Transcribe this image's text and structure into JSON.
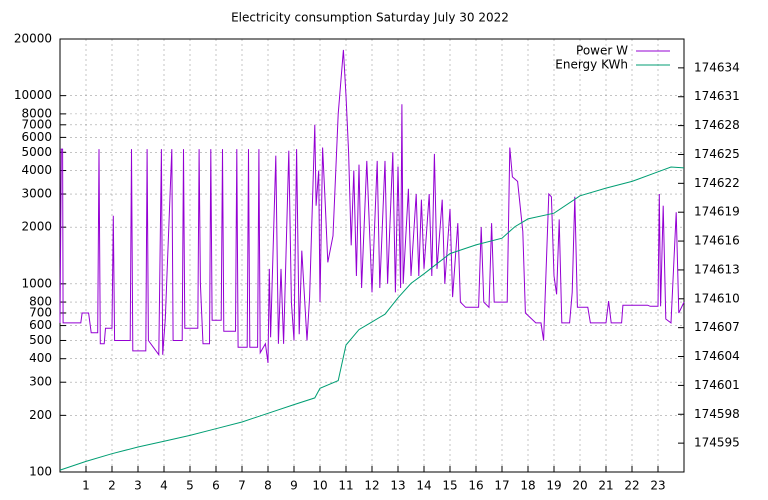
{
  "chart_data": {
    "type": "line",
    "title": "Electricity consumption Saturday July 30 2022",
    "xlim": [
      0,
      24
    ],
    "xticks": [
      1,
      2,
      3,
      4,
      5,
      6,
      7,
      8,
      9,
      10,
      11,
      12,
      13,
      14,
      15,
      16,
      17,
      18,
      19,
      20,
      21,
      22,
      23
    ],
    "ylim": [
      100,
      20000
    ],
    "log_y": true,
    "yticks": [
      100,
      200,
      300,
      400,
      500,
      600,
      700,
      800,
      1000,
      2000,
      3000,
      4000,
      5000,
      6000,
      7000,
      8000,
      10000,
      20000
    ],
    "y2lim": [
      174592,
      174637
    ],
    "y2ticks": [
      174595,
      174598,
      174601,
      174604,
      174607,
      174610,
      174613,
      174616,
      174619,
      174622,
      174625,
      174628,
      174631,
      174634
    ],
    "grid": true,
    "legend": "top-right",
    "series": [
      {
        "name": "Power W",
        "color": "#9400d3",
        "x": [
          0,
          0.05,
          0.1,
          0.12,
          0.8,
          0.85,
          1.1,
          1.2,
          1.45,
          1.5,
          1.55,
          1.7,
          1.75,
          2.0,
          2.05,
          2.1,
          2.7,
          2.75,
          2.8,
          3.3,
          3.35,
          3.4,
          3.8,
          3.9,
          3.95,
          4.05,
          4.3,
          4.35,
          4.7,
          4.75,
          4.8,
          5.3,
          5.35,
          5.4,
          5.5,
          5.75,
          5.8,
          5.85,
          6.2,
          6.25,
          6.3,
          6.75,
          6.8,
          6.85,
          7.2,
          7.25,
          7.3,
          7.6,
          7.65,
          7.7,
          7.9,
          8.0,
          8.05,
          8.1,
          8.3,
          8.4,
          8.5,
          8.6,
          8.8,
          8.9,
          9.0,
          9.1,
          9.2,
          9.3,
          9.5,
          9.6,
          9.8,
          9.85,
          9.95,
          10.0,
          10.1,
          10.2,
          10.3,
          10.5,
          10.7,
          10.9,
          11.0,
          11.1,
          11.2,
          11.3,
          11.4,
          11.5,
          11.6,
          11.8,
          12.0,
          12.2,
          12.3,
          12.5,
          12.6,
          12.8,
          12.9,
          13.0,
          13.1,
          13.15,
          13.2,
          13.4,
          13.5,
          13.7,
          13.8,
          13.9,
          14.0,
          14.2,
          14.3,
          14.4,
          14.5,
          14.7,
          14.8,
          15.0,
          15.1,
          15.3,
          15.4,
          15.6,
          16.1,
          16.2,
          16.3,
          16.5,
          16.6,
          16.7,
          17.2,
          17.3,
          17.4,
          17.6,
          17.8,
          17.9,
          18.3,
          18.5,
          18.6,
          18.8,
          18.9,
          19.0,
          19.1,
          19.2,
          19.3,
          19.6,
          19.7,
          19.8,
          19.9,
          20.3,
          20.4,
          21.0,
          21.1,
          21.2,
          21.6,
          21.65,
          22.6,
          22.7,
          23.0,
          23.05,
          23.1,
          23.2,
          23.3,
          23.5,
          23.7,
          23.8,
          24.0
        ],
        "values": [
          620,
          5200,
          5200,
          620,
          620,
          700,
          700,
          550,
          550,
          5200,
          480,
          480,
          580,
          580,
          2300,
          500,
          500,
          5200,
          440,
          440,
          5200,
          500,
          420,
          5200,
          420,
          650,
          5200,
          500,
          500,
          5200,
          580,
          580,
          5200,
          1000,
          480,
          480,
          5200,
          640,
          640,
          5200,
          560,
          560,
          5200,
          460,
          460,
          5200,
          460,
          460,
          5200,
          430,
          480,
          380,
          1200,
          520,
          4800,
          480,
          1200,
          480,
          5100,
          800,
          500,
          5200,
          540,
          1500,
          500,
          850,
          7000,
          2600,
          4000,
          800,
          5300,
          2700,
          1300,
          1800,
          8000,
          17500,
          10000,
          5000,
          1600,
          4000,
          1100,
          4300,
          950,
          4500,
          900,
          4500,
          950,
          4500,
          1000,
          5000,
          900,
          4200,
          950,
          9000,
          1000,
          3200,
          1100,
          3000,
          1100,
          2800,
          1200,
          3000,
          1100,
          4900,
          1200,
          2800,
          1000,
          2500,
          850,
          2100,
          800,
          750,
          750,
          2000,
          800,
          750,
          2100,
          800,
          800,
          5300,
          3700,
          3500,
          1900,
          700,
          620,
          620,
          500,
          3000,
          2900,
          1100,
          880,
          2200,
          620,
          620,
          900,
          2900,
          750,
          750,
          620,
          620,
          810,
          620,
          620,
          770,
          770,
          760,
          760,
          3000,
          760,
          2600,
          650,
          620,
          2400,
          700,
          800
        ]
      },
      {
        "name": "Energy KWh",
        "color": "#009e73",
        "axis": "y2",
        "x": [
          0,
          1,
          2,
          3,
          4,
          5,
          6,
          7,
          8,
          9,
          9.8,
          10,
          10.7,
          11,
          11.5,
          12,
          12.5,
          13,
          13.5,
          14,
          15,
          16,
          17,
          17.5,
          18,
          19,
          20,
          21,
          22,
          23,
          23.5,
          24
        ],
        "values": [
          174592.2,
          174593.1,
          174593.9,
          174594.6,
          174595.2,
          174595.8,
          174596.5,
          174597.2,
          174598.1,
          174599.0,
          174599.7,
          174600.7,
          174601.5,
          174605.2,
          174606.8,
          174607.6,
          174608.4,
          174610.1,
          174611.6,
          174612.6,
          174614.7,
          174615.6,
          174616.3,
          174617.5,
          174618.3,
          174618.9,
          174620.7,
          174621.5,
          174622.2,
          174623.2,
          174623.7,
          174623.6
        ]
      }
    ]
  }
}
